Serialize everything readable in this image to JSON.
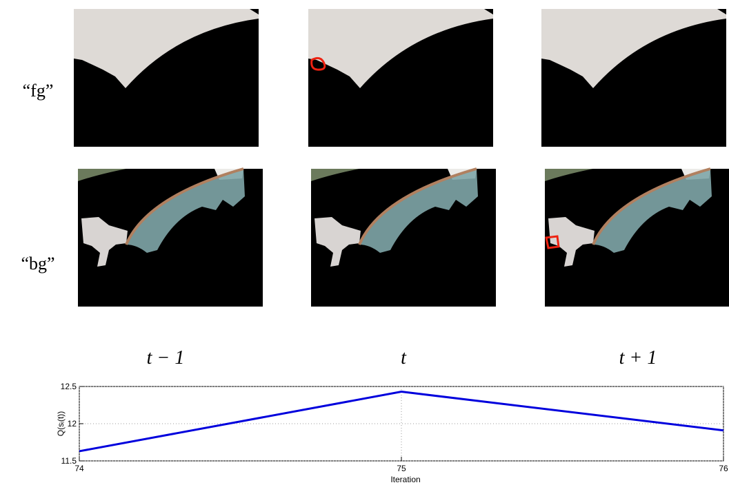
{
  "row_labels": [
    "“fg”",
    "“bg”"
  ],
  "column_labels": [
    "t − 1",
    "t",
    "t + 1"
  ],
  "chart_data": {
    "type": "line",
    "x": [
      74,
      75,
      76
    ],
    "values": [
      11.63,
      12.43,
      11.91
    ],
    "color": "#0000dd",
    "xlim": [
      74,
      76
    ],
    "xticks": [
      74,
      75,
      76
    ],
    "ylim": [
      11.5,
      12.5
    ],
    "yticks": [
      11.5,
      12,
      12.5
    ],
    "xlabel": "Iteration",
    "ylabel": "Q(sᵢ(t))",
    "grid": true
  }
}
